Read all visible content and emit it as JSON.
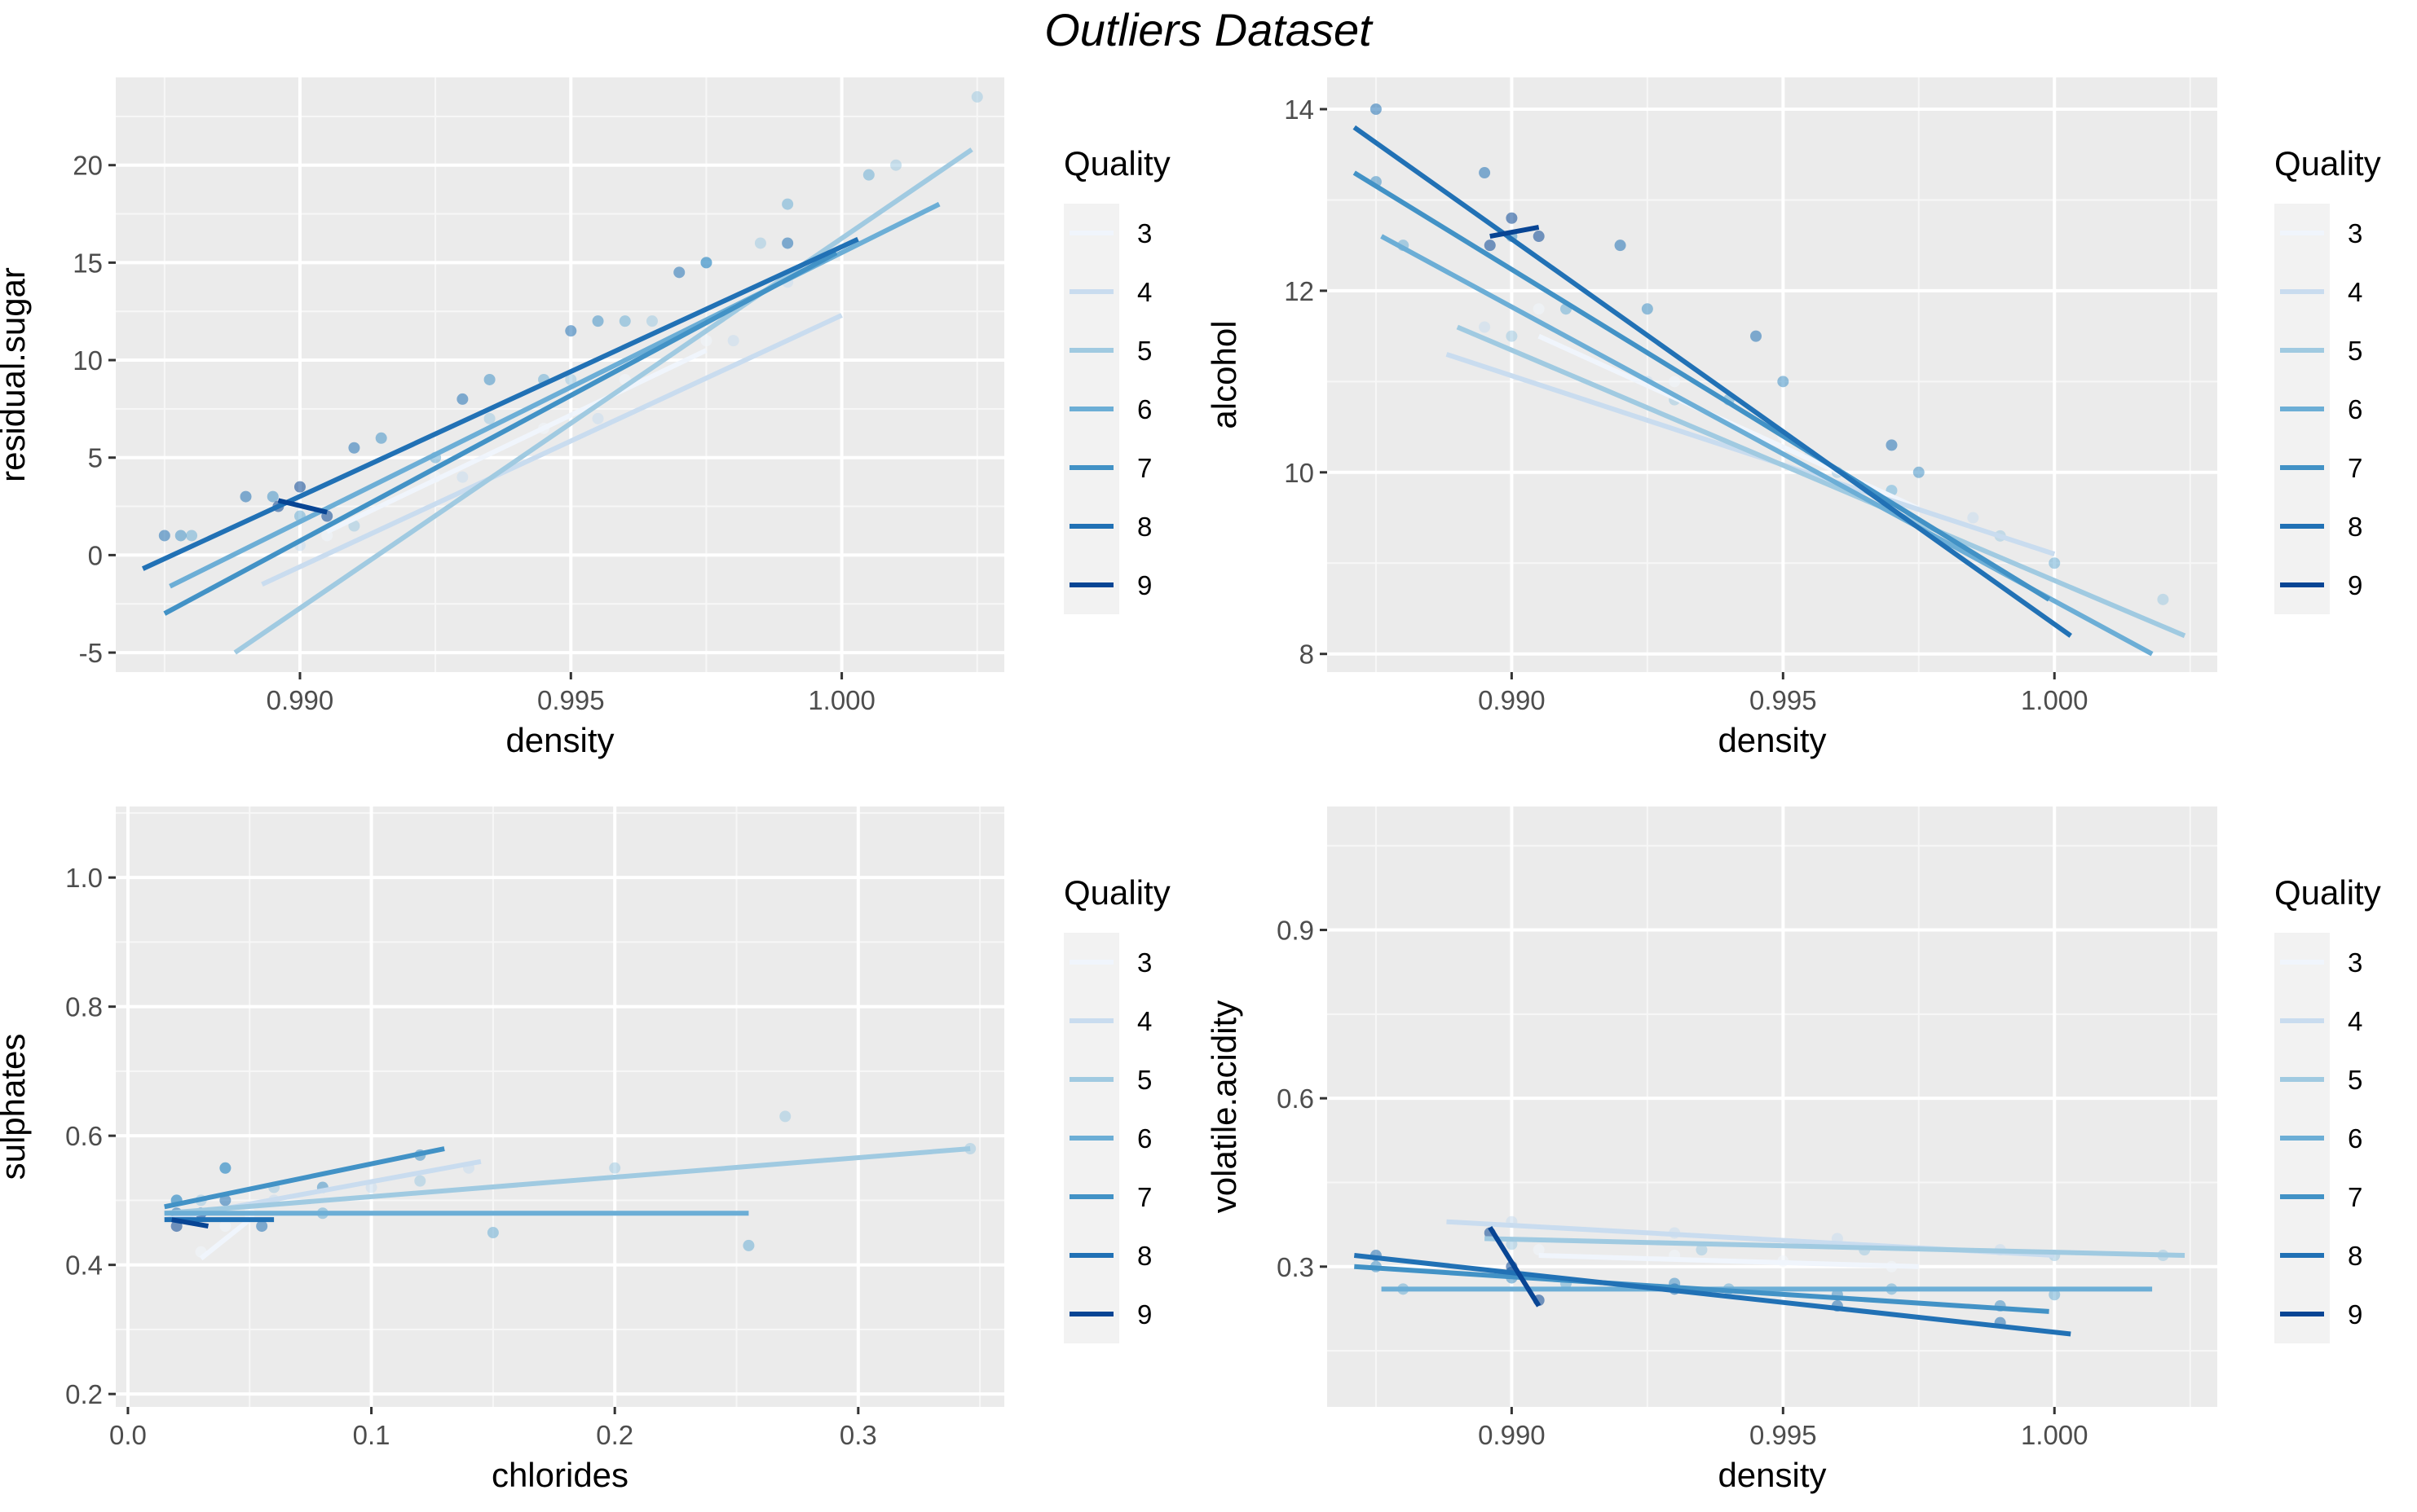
{
  "figure_title": "Outliers Dataset",
  "chart_data": [
    {
      "type": "scatter",
      "xlabel": "density",
      "ylabel": "residual.sugar",
      "xlim": [
        0.9866,
        1.003
      ],
      "ylim": [
        -6,
        24.5
      ],
      "xticks": [
        0.99,
        0.995,
        1.0
      ],
      "xtick_labels": [
        "0.990",
        "0.995",
        "1.000"
      ],
      "yticks": [
        -5,
        0,
        5,
        10,
        15,
        20
      ],
      "ytick_labels": [
        "-5",
        "0",
        "5",
        "10",
        "15",
        "20"
      ],
      "grid": true,
      "legend_placement": "right",
      "legend_title": "Quality",
      "series": [
        {
          "name": "3",
          "color": "#f0f5fc",
          "line": [
            [
              0.9905,
              1.2
            ],
            [
              0.9975,
              10.5
            ]
          ],
          "points": [
            [
              0.9905,
              1.0
            ],
            [
              0.9925,
              4.0
            ],
            [
              0.9945,
              6.5
            ],
            [
              0.996,
              9.0
            ],
            [
              0.9975,
              11.0
            ]
          ]
        },
        {
          "name": "4",
          "color": "#c9dcef",
          "line": [
            [
              0.9893,
              -1.5
            ],
            [
              1.0,
              12.3
            ]
          ],
          "points": [
            [
              0.99,
              0.5
            ],
            [
              0.993,
              4.0
            ],
            [
              0.9955,
              7.0
            ],
            [
              0.998,
              11.0
            ],
            [
              0.999,
              14.0
            ]
          ]
        },
        {
          "name": "5",
          "color": "#a0cae1",
          "line": [
            [
              0.9888,
              -5.0
            ],
            [
              1.0024,
              20.8
            ]
          ],
          "points": [
            [
              0.991,
              1.5
            ],
            [
              0.9935,
              7.0
            ],
            [
              0.995,
              9.0
            ],
            [
              0.9965,
              12.0
            ],
            [
              0.9985,
              16.0
            ],
            [
              1.001,
              20.0
            ],
            [
              1.0025,
              23.5
            ]
          ]
        },
        {
          "name": "6",
          "color": "#6caed6",
          "line": [
            [
              0.9876,
              -1.6
            ],
            [
              1.0018,
              18.0
            ]
          ],
          "points": [
            [
              0.988,
              1.0
            ],
            [
              0.99,
              2.0
            ],
            [
              0.9925,
              5.0
            ],
            [
              0.9945,
              9.0
            ],
            [
              0.996,
              12.0
            ],
            [
              0.9975,
              15.0
            ],
            [
              0.999,
              18.0
            ],
            [
              1.0005,
              19.5
            ]
          ]
        },
        {
          "name": "7",
          "color": "#4292c6",
          "line": [
            [
              0.9875,
              -3.0
            ],
            [
              0.9999,
              15.5
            ]
          ],
          "points": [
            [
              0.9878,
              1.0
            ],
            [
              0.9895,
              3.0
            ],
            [
              0.9915,
              6.0
            ],
            [
              0.9935,
              9.0
            ],
            [
              0.9955,
              12.0
            ],
            [
              0.9975,
              15.0
            ]
          ]
        },
        {
          "name": "8",
          "color": "#2171b5",
          "line": [
            [
              0.9871,
              -0.7
            ],
            [
              1.0003,
              16.2
            ]
          ],
          "points": [
            [
              0.9875,
              1.0
            ],
            [
              0.989,
              3.0
            ],
            [
              0.991,
              5.5
            ],
            [
              0.993,
              8.0
            ],
            [
              0.995,
              11.5
            ],
            [
              0.997,
              14.5
            ],
            [
              0.999,
              16.0
            ]
          ]
        },
        {
          "name": "9",
          "color": "#084594",
          "line": [
            [
              0.9896,
              2.8
            ],
            [
              0.9905,
              2.2
            ]
          ],
          "points": [
            [
              0.9896,
              2.5
            ],
            [
              0.99,
              3.5
            ],
            [
              0.9905,
              2.0
            ]
          ]
        }
      ]
    },
    {
      "type": "scatter",
      "xlabel": "density",
      "ylabel": "alcohol",
      "xlim": [
        0.9866,
        1.003
      ],
      "ylim": [
        7.8,
        14.35
      ],
      "xticks": [
        0.99,
        0.995,
        1.0
      ],
      "xtick_labels": [
        "0.990",
        "0.995",
        "1.000"
      ],
      "yticks": [
        8,
        10,
        12,
        14
      ],
      "ytick_labels": [
        "8",
        "10",
        "12",
        "14"
      ],
      "grid": true,
      "legend_placement": "right",
      "legend_title": "Quality",
      "series": [
        {
          "name": "3",
          "color": "#f0f5fc",
          "line": [
            [
              0.9905,
              11.5
            ],
            [
              0.9975,
              9.6
            ]
          ],
          "points": [
            [
              0.9905,
              11.8
            ],
            [
              0.993,
              11.0
            ],
            [
              0.995,
              10.4
            ],
            [
              0.997,
              9.8
            ]
          ]
        },
        {
          "name": "4",
          "color": "#c9dcef",
          "line": [
            [
              0.9888,
              11.3
            ],
            [
              1.0,
              9.1
            ]
          ],
          "points": [
            [
              0.9895,
              11.6
            ],
            [
              0.9925,
              11.0
            ],
            [
              0.9955,
              10.2
            ],
            [
              0.9985,
              9.5
            ]
          ]
        },
        {
          "name": "5",
          "color": "#a0cae1",
          "line": [
            [
              0.989,
              11.6
            ],
            [
              1.0024,
              8.2
            ]
          ],
          "points": [
            [
              0.99,
              11.5
            ],
            [
              0.993,
              10.8
            ],
            [
              0.996,
              10.0
            ],
            [
              0.999,
              9.3
            ],
            [
              1.002,
              8.6
            ]
          ]
        },
        {
          "name": "6",
          "color": "#6caed6",
          "line": [
            [
              0.9876,
              12.6
            ],
            [
              1.0018,
              8.0
            ]
          ],
          "points": [
            [
              0.988,
              12.5
            ],
            [
              0.991,
              11.8
            ],
            [
              0.994,
              10.8
            ],
            [
              0.997,
              9.8
            ],
            [
              1.0,
              9.0
            ]
          ]
        },
        {
          "name": "7",
          "color": "#4292c6",
          "line": [
            [
              0.9871,
              13.3
            ],
            [
              0.9999,
              8.6
            ]
          ],
          "points": [
            [
              0.9875,
              13.2
            ],
            [
              0.99,
              12.6
            ],
            [
              0.9925,
              11.8
            ],
            [
              0.995,
              11.0
            ],
            [
              0.9975,
              10.0
            ]
          ]
        },
        {
          "name": "8",
          "color": "#2171b5",
          "line": [
            [
              0.9871,
              13.8
            ],
            [
              1.0003,
              8.2
            ]
          ],
          "points": [
            [
              0.9875,
              14.0
            ],
            [
              0.9895,
              13.3
            ],
            [
              0.992,
              12.5
            ],
            [
              0.9945,
              11.5
            ],
            [
              0.997,
              10.3
            ]
          ]
        },
        {
          "name": "9",
          "color": "#084594",
          "line": [
            [
              0.9896,
              12.6
            ],
            [
              0.9905,
              12.7
            ]
          ],
          "points": [
            [
              0.9896,
              12.5
            ],
            [
              0.99,
              12.8
            ],
            [
              0.9905,
              12.6
            ]
          ]
        }
      ]
    },
    {
      "type": "scatter",
      "xlabel": "chlorides",
      "ylabel": "sulphates",
      "xlim": [
        -0.005,
        0.36
      ],
      "ylim": [
        0.18,
        1.11
      ],
      "xticks": [
        0.0,
        0.1,
        0.2,
        0.3
      ],
      "xtick_labels": [
        "0.0",
        "0.1",
        "0.2",
        "0.3"
      ],
      "yticks": [
        0.2,
        0.4,
        0.6,
        0.8,
        1.0
      ],
      "ytick_labels": [
        "0.2",
        "0.4",
        "0.6",
        "0.8",
        "1.0"
      ],
      "grid": true,
      "legend_placement": "right",
      "legend_title": "Quality",
      "series": [
        {
          "name": "3",
          "color": "#f0f5fc",
          "line": [
            [
              0.03,
              0.41
            ],
            [
              0.05,
              0.47
            ]
          ],
          "points": [
            [
              0.03,
              0.42
            ],
            [
              0.04,
              0.46
            ],
            [
              0.05,
              0.48
            ]
          ]
        },
        {
          "name": "4",
          "color": "#c9dcef",
          "line": [
            [
              0.015,
              0.47
            ],
            [
              0.145,
              0.56
            ]
          ],
          "points": [
            [
              0.03,
              0.48
            ],
            [
              0.06,
              0.5
            ],
            [
              0.1,
              0.52
            ],
            [
              0.14,
              0.55
            ]
          ]
        },
        {
          "name": "5",
          "color": "#a0cae1",
          "line": [
            [
              0.015,
              0.48
            ],
            [
              0.346,
              0.58
            ]
          ],
          "points": [
            [
              0.03,
              0.5
            ],
            [
              0.06,
              0.52
            ],
            [
              0.12,
              0.53
            ],
            [
              0.2,
              0.55
            ],
            [
              0.27,
              0.63
            ],
            [
              0.346,
              0.58
            ]
          ]
        },
        {
          "name": "6",
          "color": "#6caed6",
          "line": [
            [
              0.015,
              0.48
            ],
            [
              0.255,
              0.48
            ]
          ],
          "points": [
            [
              0.02,
              0.5
            ],
            [
              0.04,
              0.55
            ],
            [
              0.08,
              0.48
            ],
            [
              0.15,
              0.45
            ],
            [
              0.255,
              0.43
            ]
          ]
        },
        {
          "name": "7",
          "color": "#4292c6",
          "line": [
            [
              0.015,
              0.49
            ],
            [
              0.13,
              0.58
            ]
          ],
          "points": [
            [
              0.02,
              0.5
            ],
            [
              0.04,
              0.55
            ],
            [
              0.08,
              0.52
            ],
            [
              0.12,
              0.57
            ]
          ]
        },
        {
          "name": "8",
          "color": "#2171b5",
          "line": [
            [
              0.015,
              0.47
            ],
            [
              0.06,
              0.47
            ]
          ],
          "points": [
            [
              0.02,
              0.48
            ],
            [
              0.04,
              0.5
            ],
            [
              0.055,
              0.46
            ]
          ]
        },
        {
          "name": "9",
          "color": "#084594",
          "line": [
            [
              0.018,
              0.47
            ],
            [
              0.033,
              0.46
            ]
          ],
          "points": [
            [
              0.02,
              0.46
            ],
            [
              0.03,
              0.48
            ]
          ]
        }
      ]
    },
    {
      "type": "scatter",
      "xlabel": "density",
      "ylabel": "volatile.acidity",
      "xlim": [
        0.9866,
        1.003
      ],
      "ylim": [
        0.05,
        1.12
      ],
      "xticks": [
        0.99,
        0.995,
        1.0
      ],
      "xtick_labels": [
        "0.990",
        "0.995",
        "1.000"
      ],
      "yticks": [
        0.3,
        0.6,
        0.9
      ],
      "ytick_labels": [
        "0.3",
        "0.6",
        "0.9"
      ],
      "grid": true,
      "legend_placement": "right",
      "legend_title": "Quality",
      "series": [
        {
          "name": "3",
          "color": "#f0f5fc",
          "line": [
            [
              0.9905,
              0.32
            ],
            [
              0.9975,
              0.3
            ]
          ],
          "points": [
            [
              0.9905,
              0.33
            ],
            [
              0.993,
              0.32
            ],
            [
              0.995,
              0.31
            ],
            [
              0.997,
              0.3
            ]
          ]
        },
        {
          "name": "4",
          "color": "#c9dcef",
          "line": [
            [
              0.9888,
              0.38
            ],
            [
              1.0,
              0.32
            ]
          ],
          "points": [
            [
              0.99,
              0.38
            ],
            [
              0.993,
              0.36
            ],
            [
              0.996,
              0.35
            ],
            [
              0.999,
              0.33
            ]
          ]
        },
        {
          "name": "5",
          "color": "#a0cae1",
          "line": [
            [
              0.9895,
              0.35
            ],
            [
              1.0024,
              0.32
            ]
          ],
          "points": [
            [
              0.99,
              0.34
            ],
            [
              0.9935,
              0.33
            ],
            [
              0.9965,
              0.33
            ],
            [
              1.0,
              0.32
            ],
            [
              1.002,
              0.32
            ]
          ]
        },
        {
          "name": "6",
          "color": "#6caed6",
          "line": [
            [
              0.9876,
              0.26
            ],
            [
              1.0018,
              0.26
            ]
          ],
          "points": [
            [
              0.988,
              0.26
            ],
            [
              0.991,
              0.27
            ],
            [
              0.994,
              0.26
            ],
            [
              0.997,
              0.26
            ],
            [
              1.0,
              0.25
            ]
          ]
        },
        {
          "name": "7",
          "color": "#4292c6",
          "line": [
            [
              0.9871,
              0.3
            ],
            [
              0.9999,
              0.22
            ]
          ],
          "points": [
            [
              0.9875,
              0.3
            ],
            [
              0.99,
              0.28
            ],
            [
              0.993,
              0.27
            ],
            [
              0.996,
              0.25
            ],
            [
              0.999,
              0.23
            ]
          ]
        },
        {
          "name": "8",
          "color": "#2171b5",
          "line": [
            [
              0.9871,
              0.32
            ],
            [
              1.0003,
              0.18
            ]
          ],
          "points": [
            [
              0.9875,
              0.32
            ],
            [
              0.99,
              0.29
            ],
            [
              0.993,
              0.26
            ],
            [
              0.996,
              0.23
            ],
            [
              0.999,
              0.2
            ]
          ]
        },
        {
          "name": "9",
          "color": "#084594",
          "line": [
            [
              0.9896,
              0.37
            ],
            [
              0.9905,
              0.23
            ]
          ],
          "points": [
            [
              0.9896,
              0.36
            ],
            [
              0.99,
              0.3
            ],
            [
              0.9905,
              0.24
            ]
          ]
        }
      ]
    }
  ]
}
